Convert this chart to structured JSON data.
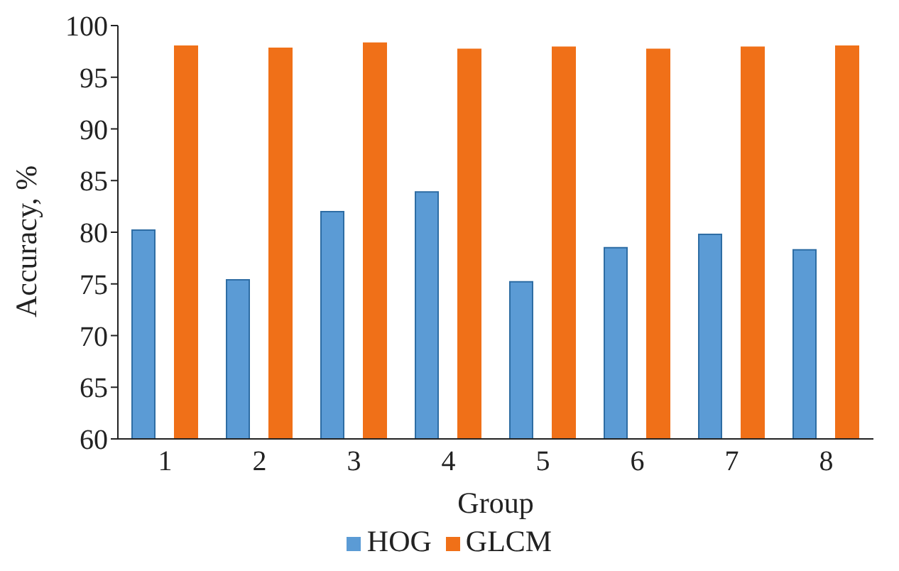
{
  "chart_data": {
    "type": "bar",
    "xlabel": "Group",
    "ylabel": "Accuracy, %",
    "categories": [
      "1",
      "2",
      "3",
      "4",
      "5",
      "6",
      "7",
      "8"
    ],
    "series": [
      {
        "name": "HOG",
        "color": "#5b9bd5",
        "values": [
          80.2,
          75.4,
          82.0,
          83.9,
          75.2,
          78.5,
          79.8,
          78.3
        ]
      },
      {
        "name": "GLCM",
        "color": "#f07018",
        "values": [
          98.0,
          97.8,
          98.3,
          97.7,
          97.9,
          97.7,
          97.9,
          98.0
        ]
      }
    ],
    "ylim": [
      60,
      100
    ],
    "yticks": [
      60,
      65,
      70,
      75,
      80,
      85,
      90,
      95,
      100
    ],
    "grid": false,
    "legend": "bottom"
  }
}
